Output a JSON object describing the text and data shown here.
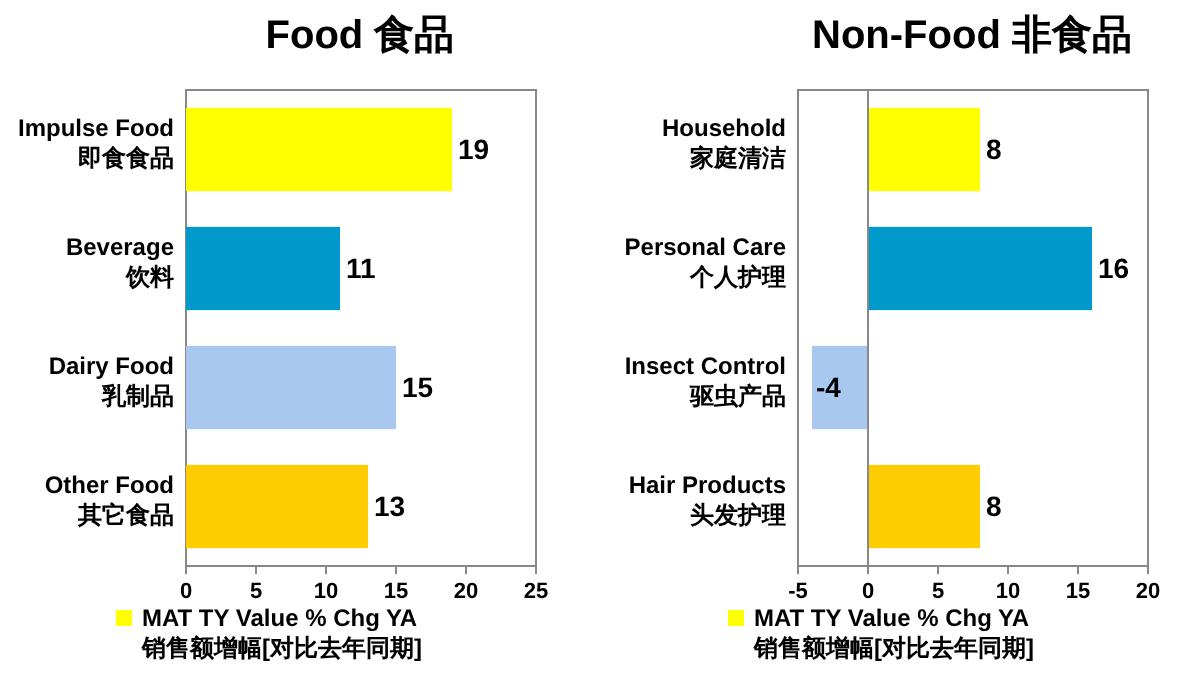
{
  "chart_data": [
    {
      "type": "bar",
      "title": "Food 食品",
      "orientation": "horizontal",
      "categories": [
        "Impulse Food\n即食食品",
        "Beverage\n饮料",
        "Dairy Food\n乳制品",
        "Other Food\n其它食品"
      ],
      "series": [
        {
          "name": "MAT TY Value % Chg YA\n销售额增幅[对比去年同期]",
          "values": [
            19,
            11,
            15,
            13
          ],
          "colors": [
            "#ffff00",
            "#0099cc",
            "#a9c8ef",
            "#ffcc00"
          ]
        }
      ],
      "xlim": [
        0,
        25
      ],
      "xticks": [
        0,
        5,
        10,
        15,
        20,
        25
      ],
      "data_labels": true,
      "legend": "bottom"
    },
    {
      "type": "bar",
      "title": "Non-Food 非食品",
      "orientation": "horizontal",
      "categories": [
        "Household\n家庭清洁",
        "Personal Care\n个人护理",
        "Insect Control\n驱虫产品",
        "Hair Products\n头发护理"
      ],
      "series": [
        {
          "name": "MAT TY Value % Chg YA\n销售额增幅[对比去年同期]",
          "values": [
            8,
            16,
            -4,
            8
          ],
          "colors": [
            "#ffff00",
            "#0099cc",
            "#a9c8ef",
            "#ffcc00"
          ]
        }
      ],
      "xlim": [
        -5,
        20
      ],
      "xticks": [
        -5,
        0,
        5,
        10,
        15,
        20
      ],
      "data_labels": true,
      "legend": "bottom",
      "ref_lines": [
        {
          "axis": "x",
          "value": 0
        }
      ]
    }
  ]
}
